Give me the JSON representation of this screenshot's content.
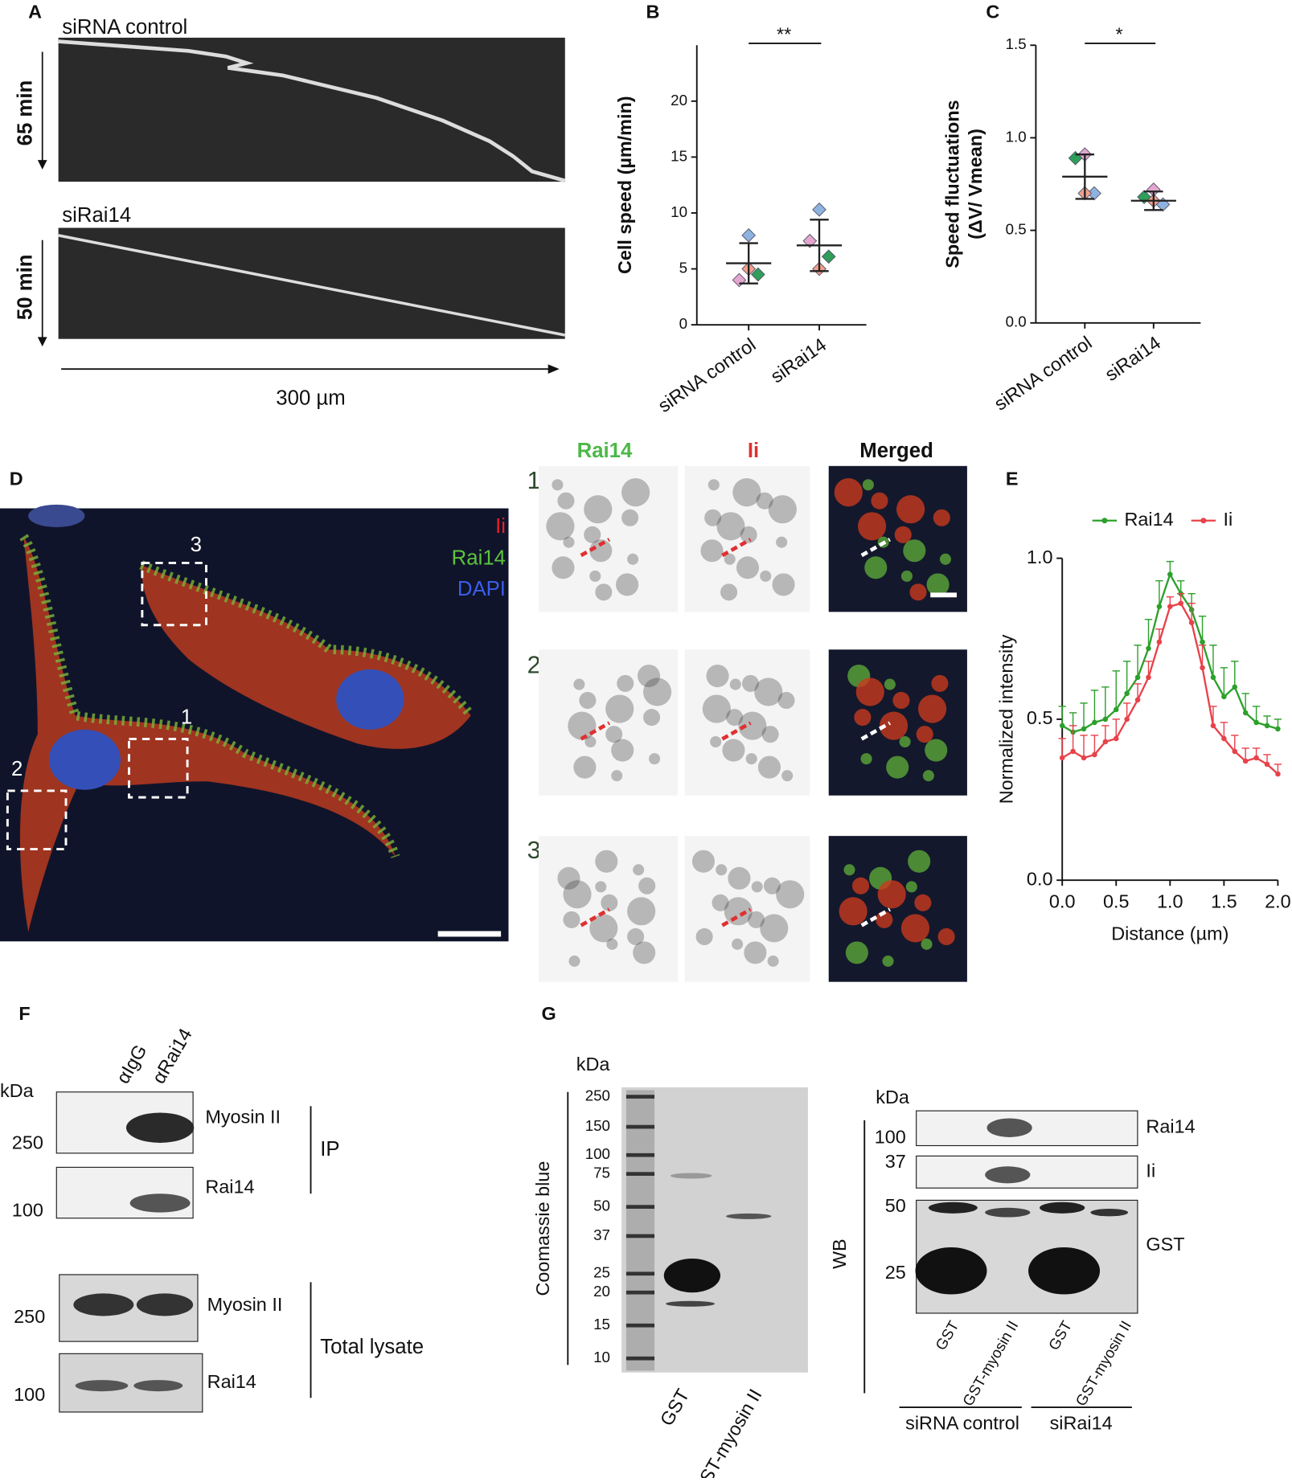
{
  "panel_a": {
    "label": "A",
    "top_title": "siRNA control",
    "top_time": "65 min",
    "bottom_title": "siRai14",
    "bottom_time": "50 min",
    "scale": "300 µm"
  },
  "chart_data": [
    {
      "type": "dot",
      "label": "B",
      "y_label": [
        "Cell speed (µm/min)"
      ],
      "categories": [
        "siRNA control",
        "siRai14"
      ],
      "ylim": [
        0,
        25
      ],
      "yticks": [
        0,
        5,
        10,
        15,
        20
      ],
      "mean": [
        5.5,
        7.1
      ],
      "sd": [
        1.8,
        2.3
      ],
      "significance": "**",
      "series": [
        {
          "color": "#8fb3e0",
          "values": [
            8.0,
            10.3
          ]
        },
        {
          "color": "#e2a6cf",
          "values": [
            4.0,
            7.5
          ]
        },
        {
          "color": "#2e9e5a",
          "values": [
            4.5,
            6.1
          ]
        },
        {
          "color": "#f2a08c",
          "values": [
            5.0,
            5.0
          ]
        }
      ]
    },
    {
      "type": "dot",
      "label": "C",
      "y_label": [
        "Speed fluctuations",
        "(ΔV/ Vmean)"
      ],
      "categories": [
        "siRNA control",
        "siRai14"
      ],
      "ylim": [
        0,
        1.5
      ],
      "yticks": [
        {
          "value": 0,
          "label": "0.0"
        },
        {
          "value": 0.5,
          "label": "0.5"
        },
        {
          "value": 1,
          "label": "1.0"
        },
        {
          "value": 1.5,
          "label": "1.5"
        }
      ],
      "mean": [
        0.79,
        0.66
      ],
      "sd": [
        0.12,
        0.05
      ],
      "significance": "*",
      "series": [
        {
          "color": "#e2a6cf",
          "values": [
            0.91,
            0.72
          ]
        },
        {
          "color": "#2e9e5a",
          "values": [
            0.89,
            0.68
          ]
        },
        {
          "color": "#8fb3e0",
          "values": [
            0.7,
            0.64
          ]
        },
        {
          "color": "#f2a08c",
          "values": [
            0.7,
            0.66
          ]
        }
      ]
    },
    {
      "type": "line",
      "label": "E",
      "x_label": "Distance (µm)",
      "y_label": "Normalized intensity",
      "x": [
        0,
        0.1,
        0.2,
        0.3,
        0.4,
        0.5,
        0.6,
        0.7,
        0.8,
        0.9,
        1,
        1.1,
        1.2,
        1.3,
        1.4,
        1.5,
        1.6,
        1.7,
        1.8,
        1.9,
        2
      ],
      "xlim": [
        0,
        2
      ],
      "xticks": [
        {
          "value": 0,
          "label": "0.0"
        },
        0.5,
        {
          "value": 1,
          "label": "1.0"
        },
        1.5,
        {
          "value": 2,
          "label": "2.0"
        }
      ],
      "ylim": [
        0,
        1
      ],
      "yticks": [
        {
          "value": 0,
          "label": "0.0"
        },
        0.5,
        {
          "value": 1,
          "label": "1.0"
        }
      ],
      "series": [
        {
          "name": "Rai14",
          "color": "#2ca02c",
          "values": [
            0.48,
            0.46,
            0.47,
            0.49,
            0.5,
            0.53,
            0.58,
            0.63,
            0.72,
            0.85,
            0.95,
            0.89,
            0.84,
            0.74,
            0.63,
            0.57,
            0.6,
            0.52,
            0.49,
            0.48,
            0.47
          ],
          "errors": [
            0.06,
            0.06,
            0.08,
            0.1,
            0.1,
            0.12,
            0.1,
            0.1,
            0.09,
            0.08,
            0.04,
            0.04,
            0.05,
            0.08,
            0.1,
            0.09,
            0.08,
            0.06,
            0.05,
            0.03,
            0.03
          ]
        },
        {
          "name": "Ii",
          "color": "#e8424a",
          "values": [
            0.38,
            0.4,
            0.38,
            0.39,
            0.43,
            0.44,
            0.5,
            0.56,
            0.63,
            0.74,
            0.85,
            0.86,
            0.8,
            0.66,
            0.48,
            0.44,
            0.4,
            0.37,
            0.38,
            0.36,
            0.33
          ],
          "errors": [
            0.06,
            0.08,
            0.07,
            0.06,
            0.05,
            0.06,
            0.05,
            0.05,
            0.05,
            0.04,
            0.03,
            0.03,
            0.06,
            0.07,
            0.06,
            0.05,
            0.05,
            0.04,
            0.03,
            0.03,
            0.03
          ]
        }
      ]
    }
  ],
  "panel_d": {
    "label": "D",
    "channels": [
      "Ii",
      "Rai14",
      "DAPI"
    ],
    "regions": [
      "1",
      "2",
      "3"
    ],
    "columns": [
      "Rai14",
      "Ii",
      "Merged"
    ],
    "rows": [
      "1",
      "2",
      "3"
    ]
  },
  "panel_f": {
    "label": "F",
    "lanes": [
      "αIgG",
      "αRai14"
    ],
    "unit": "kDa",
    "markers": [
      "250",
      "100",
      "250",
      "100"
    ],
    "blots": [
      "Myosin II",
      "Rai14",
      "Myosin II",
      "Rai14"
    ],
    "groups": [
      "IP",
      "Total lysate"
    ]
  },
  "panel_g": {
    "label": "G",
    "unit": "kDa",
    "gel_label": "Coomassie blue",
    "gel_markers": [
      "250",
      "150",
      "100",
      "75",
      "50",
      "37",
      "25",
      "20",
      "15",
      "10"
    ],
    "gel_lanes": [
      "GST",
      "GST-myosin II"
    ],
    "wb_unit": "kDa",
    "wb_label": "WB",
    "wb_markers": [
      "100",
      "37",
      "50",
      "25"
    ],
    "wb_blots": [
      "Rai14",
      "Ii",
      "GST"
    ],
    "wb_lanes": [
      "GST",
      "GST-myosin II",
      "GST",
      "GST-myosin II"
    ],
    "wb_groups": [
      "siRNA control",
      "siRai14"
    ]
  }
}
